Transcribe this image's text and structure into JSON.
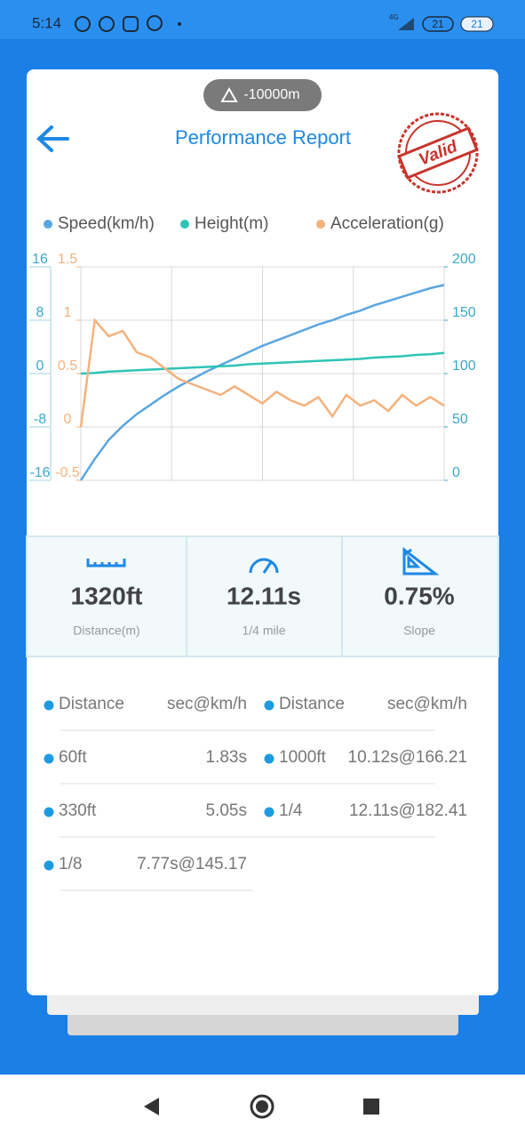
{
  "status_bar": {
    "time": "5:14",
    "network": "4G",
    "badges": [
      "21",
      "21"
    ]
  },
  "header": {
    "altitude": "-10000m",
    "title": "Performance Report",
    "stamp": "Valid"
  },
  "chart": {
    "type": "line",
    "x": [
      0,
      0.5,
      1,
      1.5,
      2,
      2.5,
      3,
      3.5,
      4,
      4.5,
      5,
      5.5,
      6,
      6.5,
      7,
      7.5,
      8,
      8.5,
      9,
      9.5,
      10,
      10.5,
      11,
      11.5,
      12,
      12.5,
      13
    ],
    "xlim": [
      0,
      13
    ],
    "ylim": [
      -16,
      16
    ],
    "yticks": [
      16,
      8,
      0,
      -8,
      -16
    ],
    "y2lim": [
      0,
      200
    ],
    "y2ticks": [
      200,
      150,
      100,
      50,
      0
    ],
    "y3lim": [
      -0.5,
      1.5
    ],
    "y3ticks": [
      1.5,
      1,
      0.5,
      0,
      -0.5
    ],
    "grid": true,
    "series": [
      {
        "name": "Speed(km/h)",
        "color": "#5aa6e0",
        "axis": "y2",
        "values": [
          0,
          20,
          38,
          51,
          62,
          71,
          80,
          88,
          95,
          102,
          108,
          114,
          120,
          126,
          131,
          136,
          141,
          146,
          150,
          155,
          159,
          164,
          168,
          172,
          176,
          180,
          183
        ]
      },
      {
        "name": "Height(m)",
        "color": "#2ec4b6",
        "axis": "y",
        "values": [
          0,
          0.1,
          0.3,
          0.4,
          0.5,
          0.6,
          0.7,
          0.8,
          0.9,
          1.0,
          1.1,
          1.2,
          1.4,
          1.5,
          1.6,
          1.7,
          1.8,
          1.9,
          2.0,
          2.1,
          2.2,
          2.4,
          2.5,
          2.6,
          2.8,
          2.9,
          3.1
        ]
      },
      {
        "name": "Acceleration(g)",
        "color": "#f4b27c",
        "axis": "y3",
        "values": [
          0,
          1.0,
          0.85,
          0.9,
          0.7,
          0.65,
          0.55,
          0.45,
          0.4,
          0.35,
          0.3,
          0.38,
          0.3,
          0.22,
          0.33,
          0.25,
          0.2,
          0.28,
          0.1,
          0.3,
          0.2,
          0.25,
          0.15,
          0.3,
          0.2,
          0.28,
          0.2
        ]
      }
    ]
  },
  "stats": [
    {
      "value": "1320ft",
      "label": "Distance(m)"
    },
    {
      "value": "12.11s",
      "label": "1/4 mile"
    },
    {
      "value": "0.75%",
      "label": "Slope"
    }
  ],
  "splits": [
    {
      "header": [
        "Distance",
        "sec@km/h"
      ],
      "rows": [
        [
          "60ft",
          "1.83s"
        ],
        [
          "330ft",
          "5.05s"
        ],
        [
          "1/8",
          "7.77s@145.17"
        ]
      ]
    },
    {
      "header": [
        "Distance",
        "sec@km/h"
      ],
      "rows": [
        [
          "1000ft",
          "10.12s@166.21"
        ],
        [
          "1/4",
          "12.11s@182.41"
        ]
      ]
    }
  ]
}
